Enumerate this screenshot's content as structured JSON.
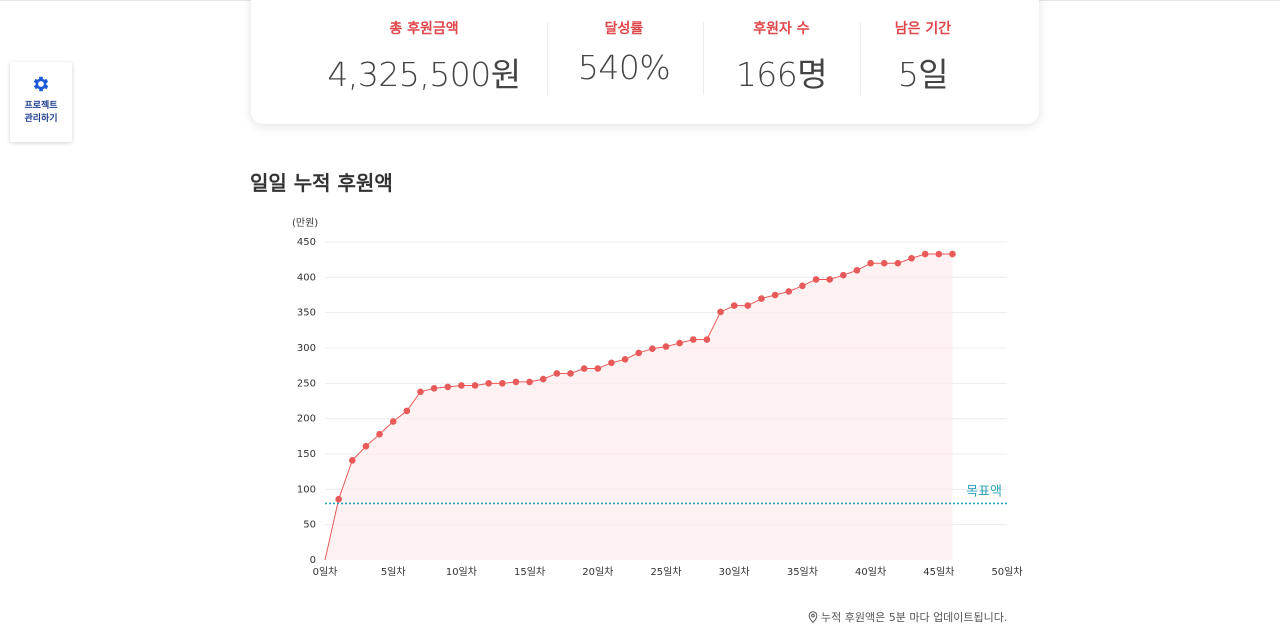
{
  "sidebar": {
    "manage_button": {
      "line1": "프로젝트",
      "line2": "관리하기",
      "icon": "gear-icon",
      "color": "#1f5bd6"
    }
  },
  "stats": [
    {
      "label": "총 후원금액",
      "value": "4,325,500원"
    },
    {
      "label": "달성률",
      "value": "540%"
    },
    {
      "label": "후원자 수",
      "value": "166명"
    },
    {
      "label": "남은 기간",
      "value": "5일"
    }
  ],
  "section_title": "일일 누적 후원액",
  "footnote": "누적 후원액은 5분 마다 업데이트됩니다.",
  "chart_data": {
    "type": "line",
    "ylabel": "(만원)",
    "ylim": [
      0,
      450
    ],
    "yticks": [
      0,
      50,
      100,
      150,
      200,
      250,
      300,
      350,
      400,
      450
    ],
    "xlim": [
      0,
      50
    ],
    "xticks": [
      {
        "value": 0,
        "label": "0일차"
      },
      {
        "value": 5,
        "label": "5일차"
      },
      {
        "value": 10,
        "label": "10일차"
      },
      {
        "value": 15,
        "label": "15일차"
      },
      {
        "value": 20,
        "label": "20일차"
      },
      {
        "value": 25,
        "label": "25일차"
      },
      {
        "value": 30,
        "label": "30일차"
      },
      {
        "value": 35,
        "label": "35일차"
      },
      {
        "value": 40,
        "label": "40일차"
      },
      {
        "value": 45,
        "label": "45일차"
      },
      {
        "value": 50,
        "label": "50일차"
      }
    ],
    "series": [
      {
        "color": "#e85a5a",
        "x": [
          1,
          2,
          3,
          4,
          5,
          6,
          7,
          8,
          9,
          10,
          11,
          12,
          13,
          14,
          15,
          16,
          17,
          18,
          19,
          20,
          21,
          22,
          23,
          24,
          25,
          26,
          27,
          28,
          29,
          30,
          31,
          32,
          33,
          34,
          35,
          36,
          37,
          38,
          39,
          40,
          41,
          42,
          43,
          44,
          45,
          46
        ],
        "values": [
          86,
          141,
          161,
          178,
          196,
          211,
          238,
          243,
          245,
          247,
          247,
          250,
          250,
          252,
          252,
          256,
          264,
          264,
          271,
          271,
          279,
          284,
          293,
          299,
          302,
          307,
          312,
          312,
          351,
          360,
          360,
          370,
          375,
          380,
          388,
          397,
          397,
          403,
          410,
          420,
          420,
          420,
          427,
          433,
          433,
          433
        ]
      }
    ],
    "target": {
      "label": "목표액",
      "value": 80,
      "color": "#2ba3b8"
    },
    "grid": true
  }
}
